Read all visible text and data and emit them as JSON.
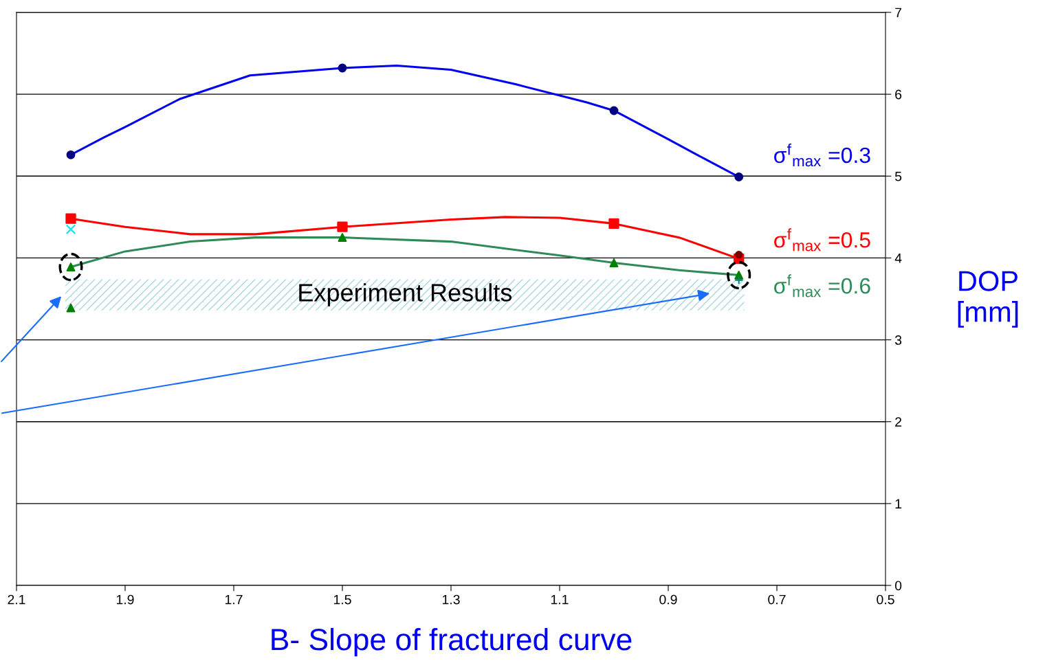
{
  "chart_data": {
    "type": "line",
    "xlabel": "B- Slope of fractured curve",
    "ylabel": "DOP\n[mm]",
    "xlim": [
      2.1,
      0.5
    ],
    "xticks": [
      2.1,
      1.9,
      1.7,
      1.5,
      1.3,
      1.1,
      0.9,
      0.7,
      0.5
    ],
    "ylim": [
      0,
      7
    ],
    "yticks": [
      0,
      1,
      2,
      3,
      4,
      5,
      6,
      7
    ],
    "grid": "y",
    "legend": false,
    "line_style": "solid",
    "series": [
      {
        "name": "σ$^{f}$$_{max}$ =0.3",
        "color": "#0000ee",
        "marker": "none",
        "x": [
          2.0,
          1.94,
          1.9,
          1.8,
          1.67,
          1.5,
          1.4,
          1.3,
          1.18,
          1.05,
          1.0,
          0.9,
          0.83,
          0.77
        ],
        "values": [
          5.26,
          5.47,
          5.6,
          5.94,
          6.23,
          6.32,
          6.35,
          6.3,
          6.12,
          5.9,
          5.8,
          5.45,
          5.2,
          4.99
        ]
      },
      {
        "name": "σ$^{f}$$_{max}$ =0.5",
        "color": "#ff0000",
        "marker": "none",
        "x": [
          2.0,
          1.9,
          1.78,
          1.66,
          1.5,
          1.3,
          1.2,
          1.1,
          1.0,
          0.88,
          0.77
        ],
        "values": [
          4.48,
          4.38,
          4.29,
          4.29,
          4.38,
          4.47,
          4.5,
          4.49,
          4.42,
          4.25,
          3.99
        ]
      },
      {
        "name": "σ$^{f}$$_{max}$ =0.6",
        "color": "#2e8b57",
        "marker": "none",
        "x": [
          2.0,
          1.9,
          1.78,
          1.66,
          1.5,
          1.3,
          1.1,
          1.0,
          0.88,
          0.77
        ],
        "values": [
          3.89,
          4.08,
          4.2,
          4.25,
          4.25,
          4.2,
          4.03,
          3.94,
          3.85,
          3.79
        ]
      },
      {
        "type": "scatter",
        "color": "#000080",
        "marker": "circle",
        "x": [
          2.0,
          1.5,
          1.0,
          0.77
        ],
        "values": [
          5.26,
          6.32,
          5.8,
          4.99
        ]
      },
      {
        "type": "scatter",
        "color": "#ff0000",
        "marker": "square",
        "x": [
          2.0,
          1.5,
          1.0,
          0.77
        ],
        "values": [
          4.48,
          4.38,
          4.42,
          3.99
        ]
      },
      {
        "type": "scatter",
        "color": "#008000",
        "marker": "triangle",
        "x": [
          2.0,
          1.5,
          1.0,
          0.77
        ],
        "values": [
          3.89,
          4.25,
          3.94,
          3.79
        ]
      },
      {
        "type": "scatter",
        "color": "#800000",
        "marker": "circle",
        "x": [
          0.77
        ],
        "values": [
          4.04
        ]
      },
      {
        "type": "scatter",
        "color": "#00e5ee",
        "marker": "cross",
        "x": [
          2.0
        ],
        "values": [
          4.35
        ]
      },
      {
        "type": "scatter",
        "color": "#008000",
        "marker": "triangle",
        "x": [
          2.0
        ],
        "values": [
          3.39
        ]
      },
      {
        "type": "scatter",
        "color": "#008080",
        "marker": "plus",
        "x": [
          0.77
        ],
        "values": [
          3.73
        ]
      }
    ],
    "bands": [
      {
        "axis": "y",
        "from": 3.36,
        "to": 3.74,
        "label": "Experiment Results",
        "color": "#a8d8dc"
      }
    ]
  }
}
